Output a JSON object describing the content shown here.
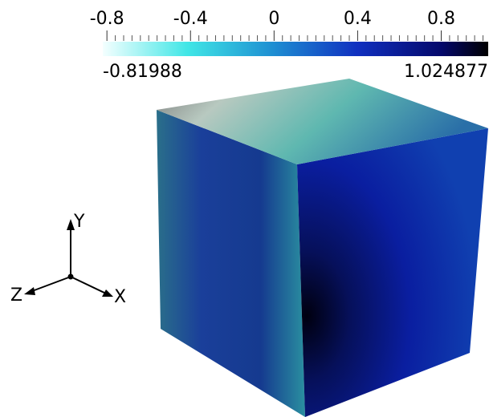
{
  "colorbar": {
    "range": [
      -0.81988,
      1.024877
    ],
    "ticks": [
      -0.8,
      -0.4,
      0,
      0.4,
      0.8
    ]
  },
  "axes": {
    "y": "Y",
    "z": "Z",
    "x": "X"
  }
}
